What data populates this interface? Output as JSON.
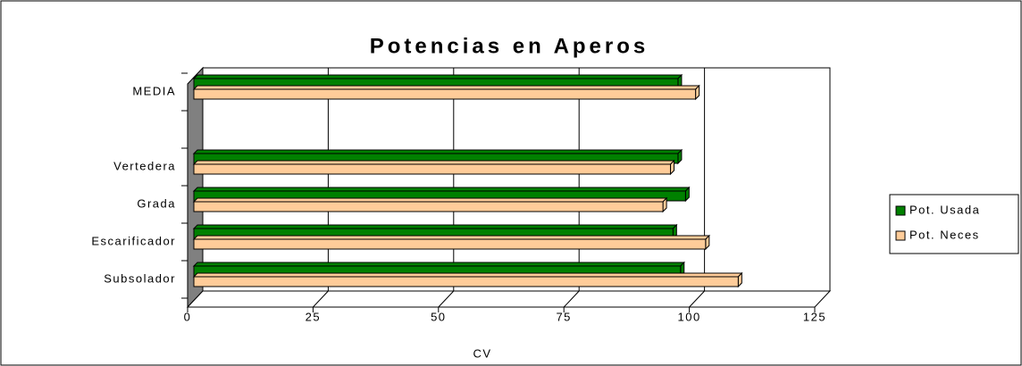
{
  "chart_data": {
    "type": "bar",
    "orientation": "horizontal",
    "title": "Potencias en Aperos",
    "x_label": "CV",
    "categories": [
      "Subsolador",
      "Escarificador",
      "Grada",
      "Vertedera",
      null,
      "MEDIA"
    ],
    "series": [
      {
        "name": "Pot. Usada",
        "color": "#008000",
        "values": [
          97,
          95.5,
          98,
          96.5,
          null,
          96.5
        ]
      },
      {
        "name": "Pot. Neces",
        "color": "#ffcc99",
        "values": [
          108.5,
          102,
          93.5,
          95,
          null,
          100
        ]
      }
    ],
    "xlim": [
      0,
      125
    ],
    "xticks": [
      0,
      25,
      50,
      75,
      100,
      125
    ],
    "grid": true,
    "legend": "right"
  }
}
